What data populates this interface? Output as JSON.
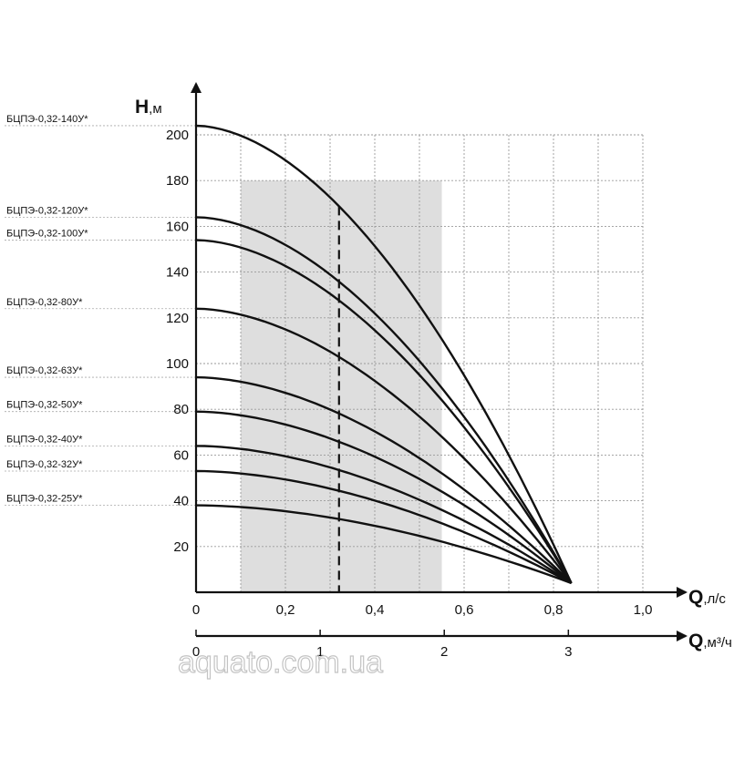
{
  "chart_data": {
    "type": "line",
    "y_axis": {
      "label": "H",
      "unit": ",м",
      "ticks": [
        20,
        40,
        60,
        80,
        100,
        120,
        140,
        160,
        180,
        200
      ],
      "range": [
        0,
        200
      ]
    },
    "x_axis_primary": {
      "label": "Q",
      "unit": ",л/с",
      "ticks": [
        "0",
        "0,2",
        "0,4",
        "0,6",
        "0,8",
        "1,0"
      ],
      "tick_values": [
        0,
        0.2,
        0.4,
        0.6,
        0.8,
        1.0
      ],
      "range": [
        0,
        1.0
      ]
    },
    "x_axis_secondary": {
      "label": "Q",
      "unit": ",м³/ч",
      "ticks": [
        "0",
        "1",
        "2",
        "3"
      ],
      "tick_values": [
        0,
        1,
        2,
        3
      ]
    },
    "grid": true,
    "working_range_q_ls": [
      0.1,
      0.55
    ],
    "nominal_q_ls": 0.32,
    "series": [
      {
        "name": "БЦПЭ-0,32-140У*",
        "h0": 204,
        "q_max": 0.84,
        "h_end": 4
      },
      {
        "name": "БЦПЭ-0,32-120У*",
        "h0": 164,
        "q_max": 0.84,
        "h_end": 4
      },
      {
        "name": "БЦПЭ-0,32-100У*",
        "h0": 154,
        "q_max": 0.84,
        "h_end": 4
      },
      {
        "name": "БЦПЭ-0,32-80У*",
        "h0": 124,
        "q_max": 0.84,
        "h_end": 4
      },
      {
        "name": "БЦПЭ-0,32-63У*",
        "h0": 94,
        "q_max": 0.84,
        "h_end": 4
      },
      {
        "name": "БЦПЭ-0,32-50У*",
        "h0": 79,
        "q_max": 0.84,
        "h_end": 4
      },
      {
        "name": "БЦПЭ-0,32-40У*",
        "h0": 64,
        "q_max": 0.84,
        "h_end": 4
      },
      {
        "name": "БЦПЭ-0,32-32У*",
        "h0": 53,
        "q_max": 0.84,
        "h_end": 4
      },
      {
        "name": "БЦПЭ-0,32-25У*",
        "h0": 38,
        "q_max": 0.84,
        "h_end": 4
      }
    ]
  },
  "watermark": "aquato.com.ua"
}
